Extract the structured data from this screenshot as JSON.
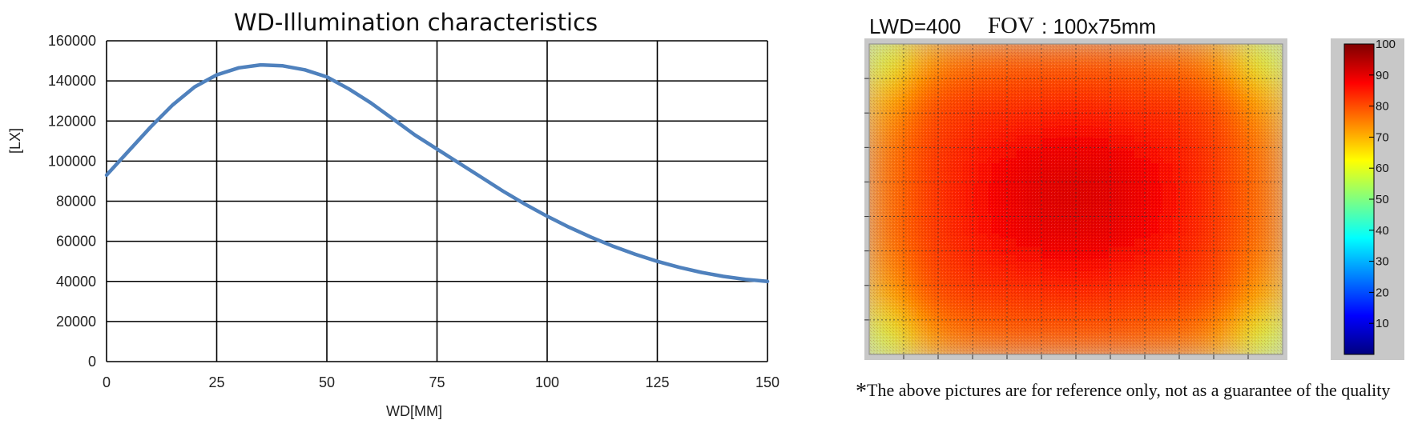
{
  "chart_data": [
    {
      "type": "line",
      "title": "WD-Illumination characteristics",
      "xlabel": "WD[MM]",
      "ylabel": "[LX]",
      "xlim": [
        0,
        150
      ],
      "ylim": [
        0,
        160000
      ],
      "x_ticks": [
        0,
        25,
        50,
        75,
        100,
        125,
        150
      ],
      "y_ticks": [
        0,
        20000,
        40000,
        60000,
        80000,
        100000,
        120000,
        140000,
        160000
      ],
      "grid": true,
      "legend": "none",
      "series": [
        {
          "color": "#4f81bd",
          "x": [
            0,
            5,
            10,
            15,
            20,
            25,
            30,
            35,
            40,
            45,
            50,
            55,
            60,
            65,
            70,
            75,
            80,
            85,
            90,
            95,
            100,
            105,
            110,
            115,
            120,
            125,
            130,
            135,
            140,
            145,
            150
          ],
          "y": [
            93000,
            105000,
            117000,
            128000,
            137000,
            143000,
            146500,
            148000,
            147500,
            145500,
            142000,
            136000,
            129000,
            121000,
            113000,
            106000,
            99000,
            92000,
            85000,
            78500,
            72500,
            67000,
            62000,
            57500,
            53500,
            50000,
            47000,
            44500,
            42500,
            41000,
            40000
          ]
        }
      ]
    },
    {
      "type": "heatmap",
      "title": "LWD=400",
      "subtitle": "FOV",
      "subtitle_value": ": 100x75mm",
      "colorbar_ticks": [
        100,
        90,
        80,
        70,
        60,
        50,
        40,
        30,
        20,
        10
      ],
      "colorbar_range": [
        0,
        100
      ],
      "colorbar_stops": [
        "#00007f",
        "#0000ff",
        "#0080ff",
        "#00ffff",
        "#80ff80",
        "#ffff00",
        "#ff8000",
        "#ff0000",
        "#7f0000"
      ],
      "rows": 9,
      "cols": 12,
      "values": [
        [
          58,
          71,
          76,
          77,
          78,
          78,
          78,
          78,
          77,
          76,
          71,
          58
        ],
        [
          70,
          78,
          81,
          82,
          82,
          83,
          83,
          82,
          82,
          81,
          78,
          70
        ],
        [
          74,
          80,
          83,
          85,
          86,
          87,
          87,
          86,
          85,
          83,
          80,
          74
        ],
        [
          76,
          81,
          84,
          87,
          89,
          90,
          90,
          89,
          87,
          84,
          81,
          76
        ],
        [
          76,
          81,
          85,
          88,
          90,
          91,
          91,
          90,
          88,
          85,
          81,
          76
        ],
        [
          76,
          81,
          84,
          87,
          89,
          90,
          90,
          89,
          87,
          84,
          81,
          76
        ],
        [
          74,
          80,
          83,
          85,
          86,
          87,
          87,
          86,
          85,
          83,
          80,
          74
        ],
        [
          70,
          78,
          81,
          82,
          82,
          83,
          83,
          82,
          82,
          81,
          78,
          70
        ],
        [
          58,
          71,
          76,
          77,
          78,
          78,
          78,
          78,
          77,
          76,
          71,
          58
        ]
      ]
    }
  ],
  "note": {
    "symbol": "*",
    "text": "The above pictures are for reference only, not as a guarantee of the quality"
  }
}
